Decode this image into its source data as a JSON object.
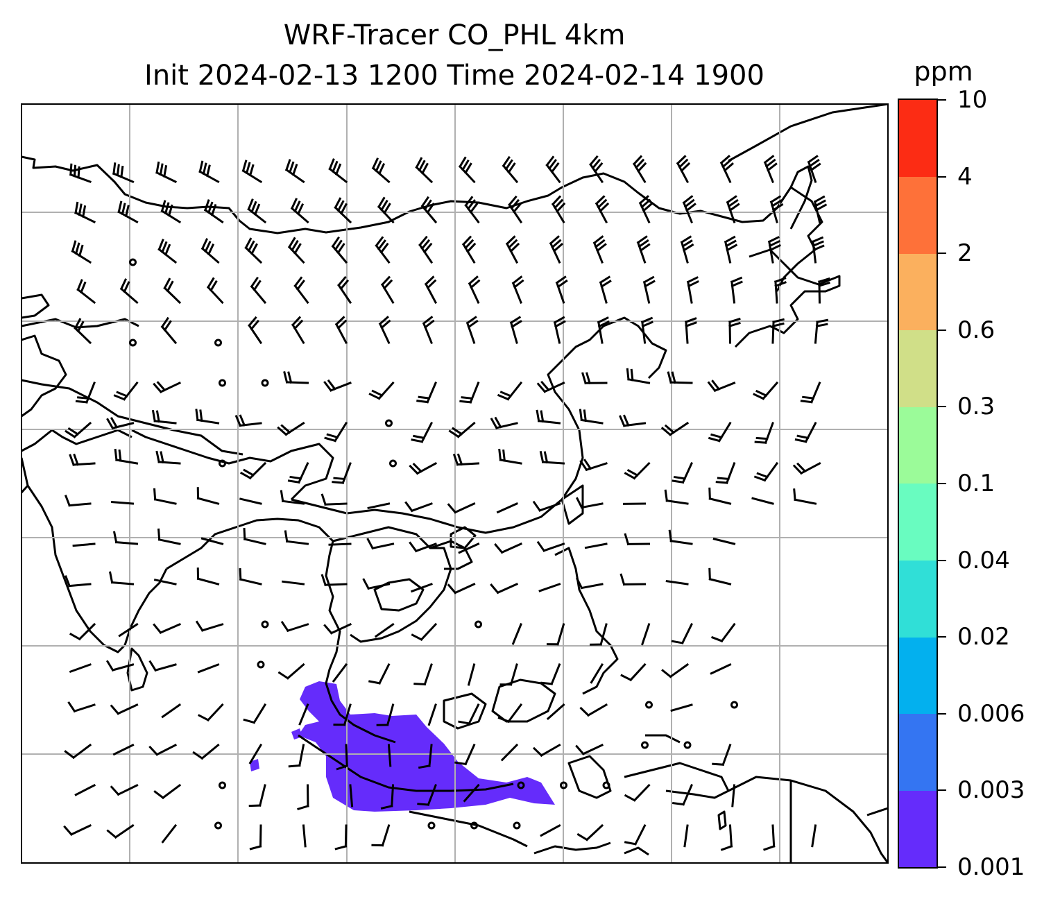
{
  "title": {
    "line1": "WRF-Tracer CO_PHL 4km",
    "line2": "Init 2024-02-13 1200 Time 2024-02-14 1900"
  },
  "colorbar": {
    "units": "ppm",
    "labels": [
      "0.001",
      "0.003",
      "0.006",
      "0.02",
      "0.04",
      "0.1",
      "0.3",
      "0.6",
      "2",
      "4",
      "10"
    ],
    "colors": [
      "#652cfb",
      "#3475f2",
      "#03b0ee",
      "#30dfd7",
      "#69fcc0",
      "#9bfb99",
      "#d0df88",
      "#fbb05e",
      "#fe7139",
      "#fc2c14"
    ]
  },
  "map": {
    "plume_color": "#652cfb",
    "gridline_color": "#b0b0b0",
    "coastline_color": "#000000"
  }
}
